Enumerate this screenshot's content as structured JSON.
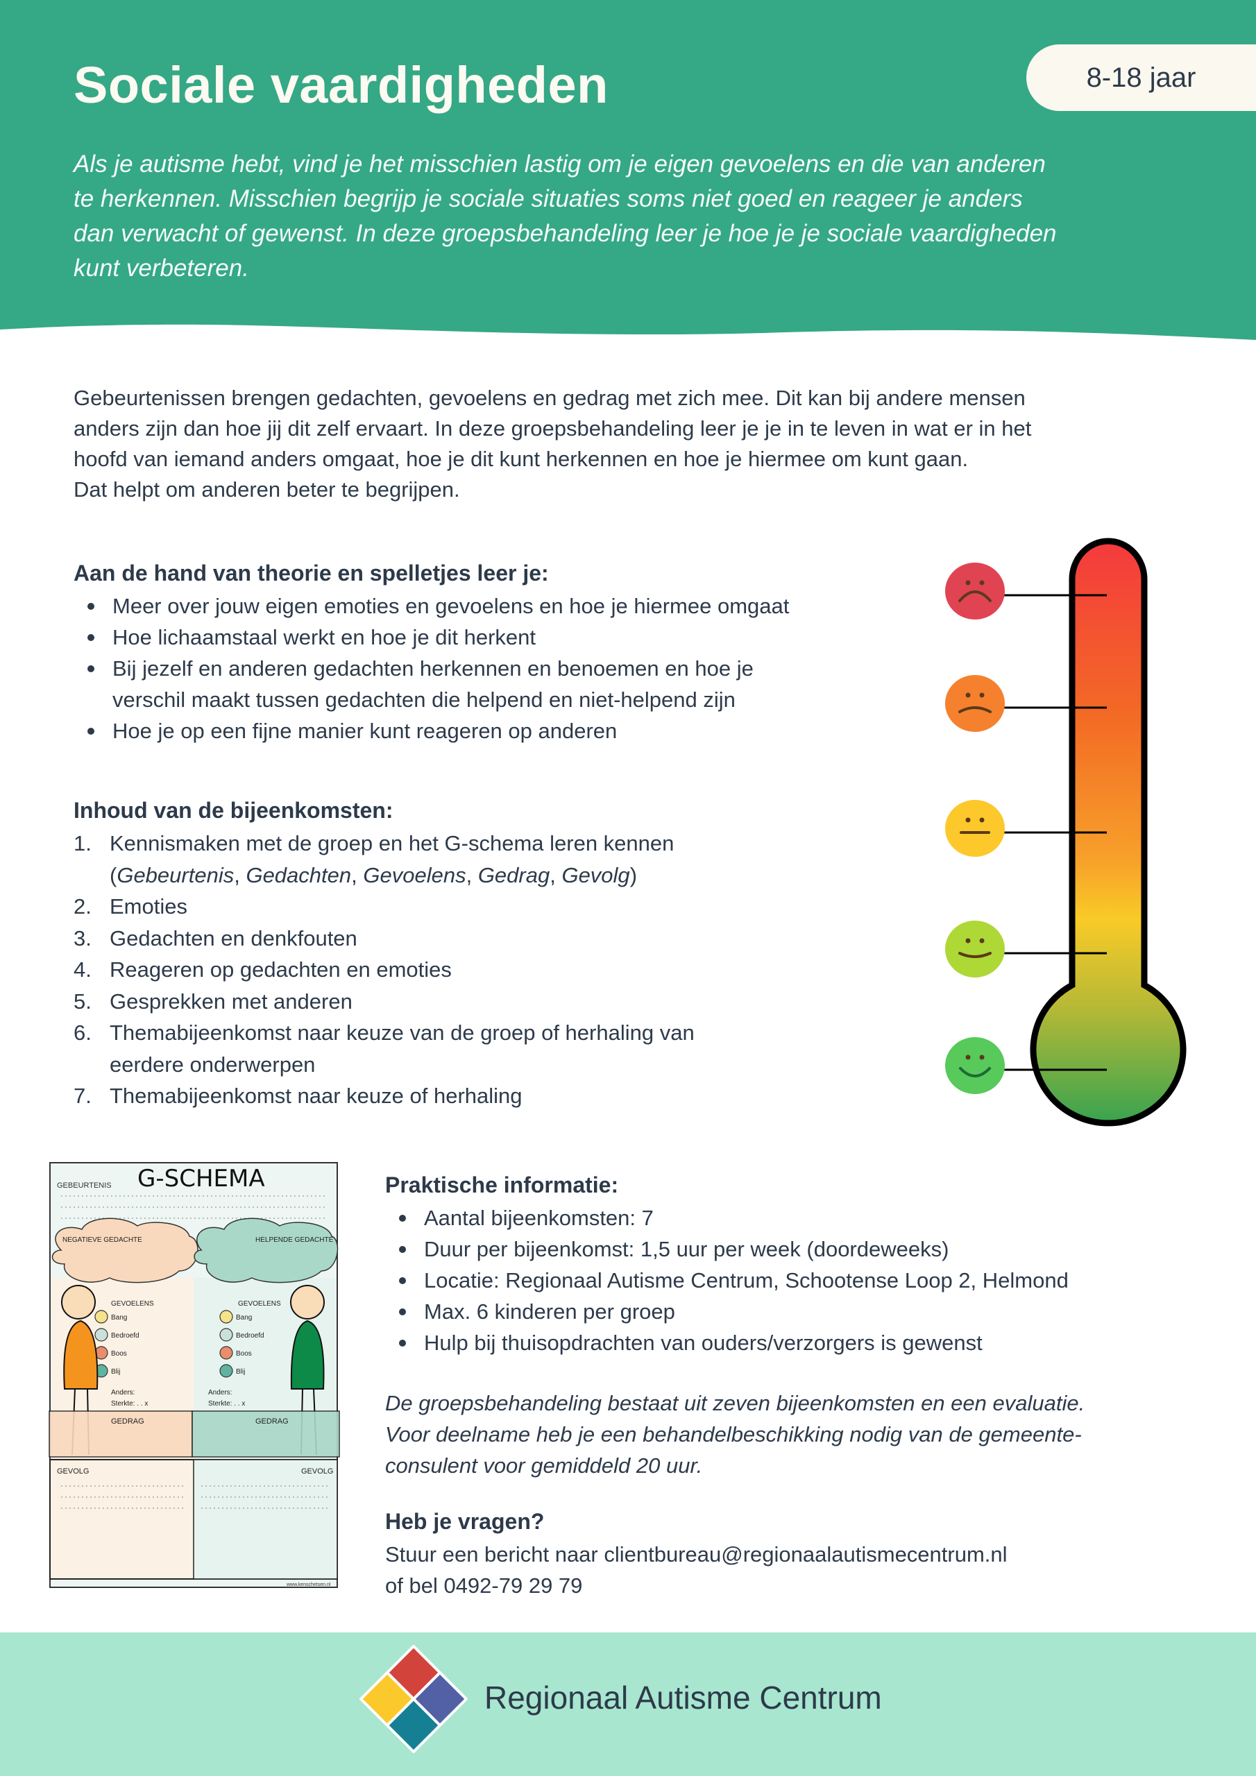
{
  "colors": {
    "header_green": "#35a886",
    "footer_mint": "#a8e6d0",
    "text_dark": "#2d3a4a",
    "badge_bg": "#fbf8ef"
  },
  "header": {
    "title": "Sociale vaardigheden",
    "age_badge": "8-18 jaar",
    "intro_lines": [
      "Als je autisme hebt, vind je het misschien lastig om je eigen gevoelens en die van anderen",
      "te herkennen. Misschien begrijp je sociale situaties soms niet goed en reageer je anders",
      "dan verwacht of gewenst. In deze groepsbehandeling leer je hoe je je sociale vaardigheden",
      "kunt verbeteren."
    ]
  },
  "body_lines": [
    "Gebeurtenissen brengen gedachten, gevoelens en gedrag met zich mee. Dit kan bij andere mensen",
    "anders zijn dan hoe jij dit zelf ervaart. In deze groepsbehandeling leer je je in te leven in wat er in het",
    "hoofd van iemand anders omgaat, hoe je dit kunt herkennen en hoe je hiermee om kunt gaan.",
    "Dat helpt om anderen beter te begrijpen."
  ],
  "learn": {
    "heading": "Aan de hand van theorie en spelletjes leer je:",
    "items": [
      [
        "Meer over jouw eigen emoties en gevoelens en hoe je hiermee omgaat"
      ],
      [
        "Hoe lichaamstaal werkt en hoe je dit herkent"
      ],
      [
        "Bij jezelf en anderen gedachten herkennen en benoemen en hoe je",
        "verschil maakt tussen gedachten die helpend en niet-helpend zijn"
      ],
      [
        "Hoe je op een fijne manier kunt reageren op anderen"
      ]
    ]
  },
  "content": {
    "heading": "Inhoud van de bijeenkomsten:",
    "items": [
      {
        "num": "1.",
        "lines": [
          "Kennismaken met de groep en het G-schema leren kennen"
        ],
        "sub": [
          "Gebeurtenis",
          "Gedachten",
          "Gevoelens",
          "Gedrag",
          "Gevolg"
        ]
      },
      {
        "num": "2.",
        "lines": [
          "Emoties"
        ]
      },
      {
        "num": "3.",
        "lines": [
          "Gedachten en denkfouten"
        ]
      },
      {
        "num": "4.",
        "lines": [
          "Reageren op gedachten en emoties"
        ]
      },
      {
        "num": "5.",
        "lines": [
          "Gesprekken met anderen"
        ]
      },
      {
        "num": "6.",
        "lines": [
          "Themabijeenkomst naar keuze van de groep of herhaling van",
          "eerdere onderwerpen"
        ]
      },
      {
        "num": "7.",
        "lines": [
          "Themabijeenkomst naar keuze of herhaling"
        ]
      }
    ]
  },
  "thermometer": {
    "levels": [
      {
        "mood": "very-sad",
        "color": "#e04452"
      },
      {
        "mood": "sad",
        "color": "#f5812e"
      },
      {
        "mood": "neutral",
        "color": "#fcc82c"
      },
      {
        "mood": "happy",
        "color": "#add836"
      },
      {
        "mood": "very-happy",
        "color": "#58c95b"
      }
    ]
  },
  "schema": {
    "title": "G-SCHEMA",
    "event": "GEBEURTENIS",
    "negative": "NEGATIEVE GEDACHTE",
    "helpful": "HELPENDE GEDACHTE",
    "feelings": "GEVOELENS",
    "emotions": [
      "Bang",
      "Bedroefd",
      "Boos",
      "Blij"
    ],
    "other": "Anders:",
    "strength": "Sterkte: . . x",
    "behaviour": "GEDRAG",
    "consequence": "GEVOLG",
    "credit": "www.kenschetsen.nl"
  },
  "practical": {
    "heading": "Praktische informatie:",
    "items": [
      "Aantal bijeenkomsten: 7",
      "Duur per bijeenkomst: 1,5 uur per week (doordeweeks)",
      "Locatie: Regionaal Autisme Centrum, Schootense Loop 2, Helmond",
      "Max. 6 kinderen per groep",
      "Hulp bij thuisopdrachten van ouders/verzorgers is gewenst"
    ],
    "note_lines": [
      "De groepsbehandeling bestaat uit zeven bijeenkomsten en een evaluatie.",
      "Voor deelname heb je een behandelbeschikking nodig van de gemeente-",
      "consulent voor gemiddeld 20 uur."
    ]
  },
  "questions": {
    "heading": "Heb je vragen?",
    "line1_prefix": "Stuur een bericht naar ",
    "email": "clientbureau@regionaalautismecentrum.nl",
    "line2_prefix": "of bel ",
    "phone": "0492-79 29 79"
  },
  "footer": {
    "org_name": "Regionaal Autisme Centrum",
    "logo_colors": [
      "#d1433b",
      "#fbc92b",
      "#5260a5",
      "#157f93"
    ]
  }
}
